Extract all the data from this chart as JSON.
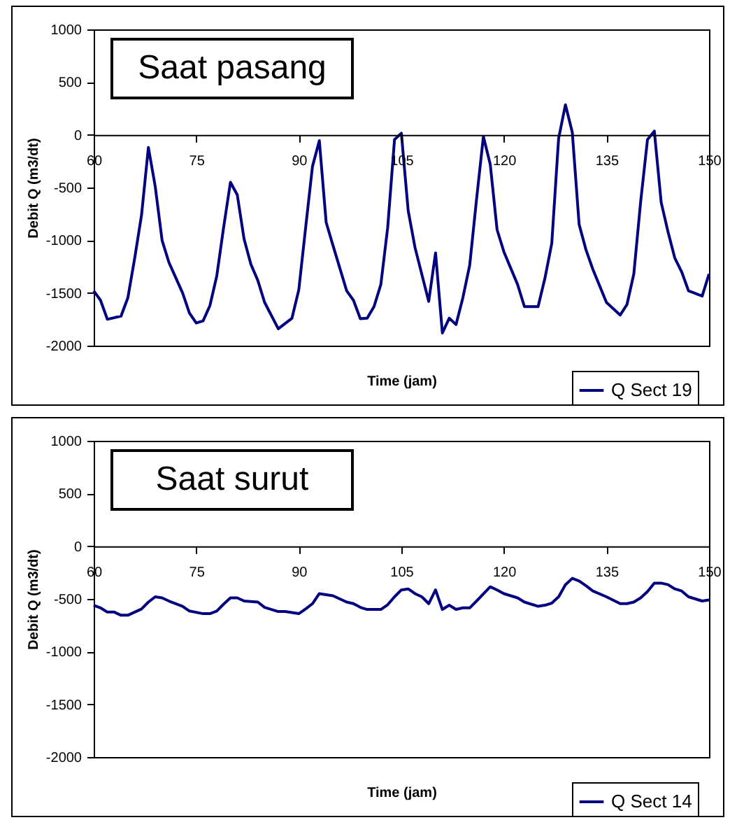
{
  "chart_data": [
    {
      "type": "line",
      "title": "Saat pasang",
      "xlabel": "Time (jam)",
      "ylabel": "Debit Q (m3/dt)",
      "xlim": [
        60,
        150
      ],
      "xticks": [
        60,
        75,
        90,
        105,
        120,
        135,
        150
      ],
      "ylim": [
        -2000,
        1000
      ],
      "yticks": [
        -2000,
        -1500,
        -1000,
        -500,
        0,
        500,
        1000
      ],
      "grid": false,
      "legend": "bottom right",
      "marker": "none",
      "line_style": "solid",
      "series": [
        {
          "name": "Q Sect 19",
          "color": "#000080",
          "x": [
            60,
            61,
            62,
            64,
            65,
            66,
            67,
            68,
            69,
            70,
            71,
            73,
            74,
            75,
            76,
            77,
            78,
            79,
            80,
            81,
            82,
            83,
            84,
            85,
            87,
            89,
            90,
            91,
            92,
            93,
            94,
            95,
            97,
            98,
            99,
            100,
            101,
            102,
            103,
            104,
            105,
            106,
            107,
            109,
            110,
            111,
            112,
            113,
            114,
            115,
            116,
            117,
            118,
            119,
            120,
            122,
            123,
            125,
            126,
            127,
            128,
            129,
            130,
            131,
            132,
            133,
            135,
            136,
            137,
            138,
            139,
            140,
            141,
            142,
            143,
            144,
            145,
            146,
            147,
            149,
            150
          ],
          "values": [
            -1480,
            -1570,
            -1750,
            -1720,
            -1545,
            -1170,
            -760,
            -120,
            -490,
            -1000,
            -1210,
            -1500,
            -1690,
            -1785,
            -1765,
            -1620,
            -1340,
            -880,
            -450,
            -570,
            -990,
            -1230,
            -1380,
            -1590,
            -1840,
            -1740,
            -1470,
            -880,
            -300,
            -55,
            -830,
            -1050,
            -1480,
            -1570,
            -1745,
            -1740,
            -1630,
            -1420,
            -880,
            -45,
            15,
            -720,
            -1070,
            -1580,
            -1120,
            -1880,
            -1740,
            -1800,
            -1545,
            -1235,
            -610,
            -15,
            -280,
            -900,
            -1110,
            -1420,
            -1630,
            -1630,
            -1360,
            -1030,
            -35,
            285,
            25,
            -850,
            -1090,
            -1275,
            -1590,
            -1650,
            -1710,
            -1610,
            -1320,
            -635,
            -45,
            35,
            -640,
            -920,
            -1170,
            -1300,
            -1480,
            -1530,
            -1320
          ]
        }
      ]
    },
    {
      "type": "line",
      "title": "Saat surut",
      "xlabel": "Time (jam)",
      "ylabel": "Debit Q (m3/dt)",
      "xlim": [
        60,
        150
      ],
      "xticks": [
        60,
        75,
        90,
        105,
        120,
        135,
        150
      ],
      "ylim": [
        -2000,
        1000
      ],
      "yticks": [
        -2000,
        -1500,
        -1000,
        -500,
        0,
        500,
        1000
      ],
      "grid": false,
      "legend": "bottom right",
      "marker": "none",
      "line_style": "solid",
      "series": [
        {
          "name": "Q Sect 14",
          "color": "#000080",
          "x": [
            60,
            61,
            62,
            63,
            64,
            65,
            66,
            67,
            68,
            69,
            70,
            71,
            73,
            74,
            76,
            77,
            78,
            79,
            80,
            81,
            82,
            84,
            85,
            87,
            88,
            90,
            91,
            92,
            93,
            94,
            95,
            97,
            98,
            99,
            100,
            102,
            103,
            104,
            105,
            106,
            107,
            108,
            109,
            110,
            111,
            112,
            113,
            114,
            115,
            116,
            118,
            119,
            120,
            122,
            123,
            125,
            126,
            127,
            128,
            129,
            130,
            131,
            132,
            133,
            135,
            137,
            138,
            139,
            140,
            141,
            142,
            143,
            144,
            145,
            146,
            147,
            148,
            149,
            150
          ],
          "values": [
            -560,
            -585,
            -625,
            -625,
            -655,
            -655,
            -625,
            -595,
            -530,
            -480,
            -490,
            -520,
            -570,
            -615,
            -640,
            -640,
            -615,
            -550,
            -490,
            -490,
            -520,
            -530,
            -580,
            -620,
            -620,
            -640,
            -595,
            -545,
            -450,
            -460,
            -470,
            -530,
            -545,
            -580,
            -600,
            -600,
            -555,
            -480,
            -415,
            -405,
            -450,
            -480,
            -545,
            -415,
            -600,
            -560,
            -600,
            -585,
            -585,
            -520,
            -385,
            -415,
            -450,
            -490,
            -530,
            -570,
            -560,
            -540,
            -480,
            -365,
            -305,
            -330,
            -375,
            -425,
            -480,
            -545,
            -545,
            -530,
            -490,
            -430,
            -350,
            -350,
            -365,
            -405,
            -425,
            -480,
            -500,
            -520,
            -510
          ]
        }
      ]
    }
  ]
}
